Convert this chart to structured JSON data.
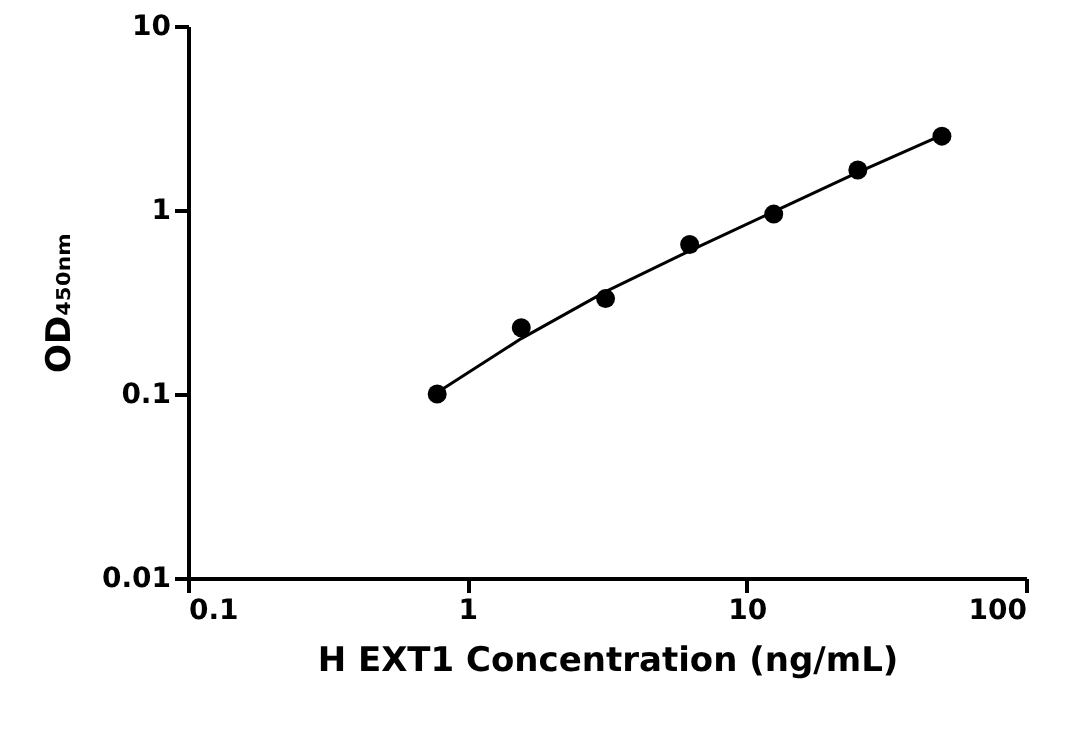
{
  "chart_data": {
    "type": "scatter",
    "xlabel": "H EXT1 Concentration (ng/mL)",
    "ylabel": "OD₄₅₀ₙₘ",
    "log": "xy",
    "grid": false,
    "xlim": [
      0.1,
      100
    ],
    "xticks": [
      0.1,
      1,
      10,
      100
    ],
    "ylim": [
      0.01,
      10
    ],
    "yticks": [
      0.01,
      0.1,
      1,
      10
    ],
    "series": [
      {
        "type": "line",
        "color": "#000000",
        "line_style": "solid",
        "x": [
          0.78,
          1.56,
          3.125,
          6.25,
          12.5,
          25,
          50
        ],
        "values": [
          0.102,
          0.2,
          0.36,
          0.6,
          0.98,
          1.6,
          2.55
        ]
      },
      {
        "type": "scatter",
        "color": "#000000",
        "marker": "circle",
        "x": [
          0.78,
          1.56,
          3.125,
          6.25,
          12.5,
          25,
          50
        ],
        "values": [
          0.1,
          0.229,
          0.33,
          0.65,
          0.95,
          1.65,
          2.52
        ]
      }
    ]
  }
}
